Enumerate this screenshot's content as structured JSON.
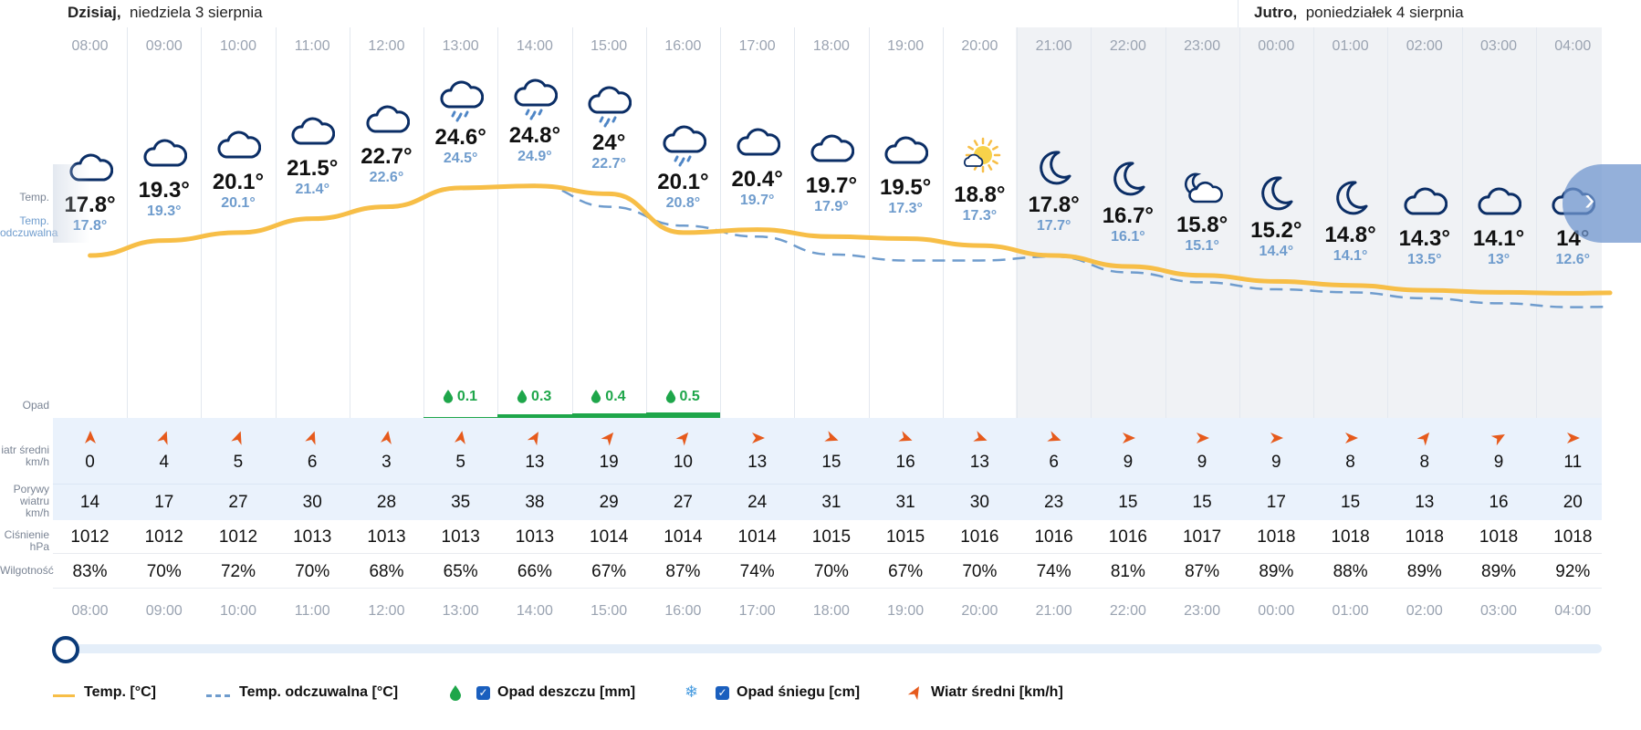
{
  "days": {
    "today": {
      "bold": "Dzisiaj,",
      "rest": "niedziela 3 sierpnia"
    },
    "tomorrow": {
      "bold": "Jutro,",
      "rest": "poniedziałek 4 sierpnia"
    }
  },
  "row_labels": {
    "temp": "Temp.",
    "feel_line1": "Temp.",
    "feel_line2": "odczuwalna",
    "precip": "Opad",
    "wind_line1": "iatr średni",
    "wind_line2": "km/h",
    "gust_line1": "Porywy",
    "gust_line2": "wiatru",
    "gust_line3": "km/h",
    "pressure_line1": "Ciśnienie",
    "pressure_line2": "hPa",
    "humidity": "Wilgotność"
  },
  "hours": [
    {
      "time": "08:00",
      "icon": "cloud-icon",
      "temp": "17.8°",
      "feel": "17.8°",
      "rain": "",
      "wind": "0",
      "wind_dir_deg": 0,
      "gust": "14",
      "pressure": "1012",
      "humidity": "83%",
      "night": false
    },
    {
      "time": "09:00",
      "icon": "cloud-icon",
      "temp": "19.3°",
      "feel": "19.3°",
      "rain": "",
      "wind": "4",
      "wind_dir_deg": 20,
      "gust": "17",
      "pressure": "1012",
      "humidity": "70%",
      "night": false
    },
    {
      "time": "10:00",
      "icon": "cloud-icon",
      "temp": "20.1°",
      "feel": "20.1°",
      "rain": "",
      "wind": "5",
      "wind_dir_deg": 20,
      "gust": "27",
      "pressure": "1012",
      "humidity": "72%",
      "night": false
    },
    {
      "time": "11:00",
      "icon": "cloud-icon",
      "temp": "21.5°",
      "feel": "21.4°",
      "rain": "",
      "wind": "6",
      "wind_dir_deg": 20,
      "gust": "30",
      "pressure": "1013",
      "humidity": "70%",
      "night": false
    },
    {
      "time": "12:00",
      "icon": "cloud-icon",
      "temp": "22.7°",
      "feel": "22.6°",
      "rain": "",
      "wind": "3",
      "wind_dir_deg": 10,
      "gust": "28",
      "pressure": "1013",
      "humidity": "68%",
      "night": false
    },
    {
      "time": "13:00",
      "icon": "rain-cloud-icon",
      "temp": "24.6°",
      "feel": "24.5°",
      "rain": "0.1",
      "wind": "5",
      "wind_dir_deg": 10,
      "gust": "35",
      "pressure": "1013",
      "humidity": "65%",
      "night": false
    },
    {
      "time": "14:00",
      "icon": "rain-cloud-icon",
      "temp": "24.8°",
      "feel": "24.9°",
      "rain": "0.3",
      "wind": "13",
      "wind_dir_deg": 30,
      "gust": "38",
      "pressure": "1013",
      "humidity": "66%",
      "night": false
    },
    {
      "time": "15:00",
      "icon": "rain-cloud-icon",
      "temp": "24°",
      "feel": "22.7°",
      "rain": "0.4",
      "wind": "19",
      "wind_dir_deg": 40,
      "gust": "29",
      "pressure": "1014",
      "humidity": "67%",
      "night": false
    },
    {
      "time": "16:00",
      "icon": "rain-cloud-icon",
      "temp": "20.1°",
      "feel": "20.8°",
      "rain": "0.5",
      "wind": "10",
      "wind_dir_deg": 40,
      "gust": "27",
      "pressure": "1014",
      "humidity": "87%",
      "night": false
    },
    {
      "time": "17:00",
      "icon": "cloud-icon",
      "temp": "20.4°",
      "feel": "19.7°",
      "rain": "",
      "wind": "13",
      "wind_dir_deg": 90,
      "gust": "24",
      "pressure": "1014",
      "humidity": "74%",
      "night": false
    },
    {
      "time": "18:00",
      "icon": "cloud-icon",
      "temp": "19.7°",
      "feel": "17.9°",
      "rain": "",
      "wind": "15",
      "wind_dir_deg": 110,
      "gust": "31",
      "pressure": "1015",
      "humidity": "70%",
      "night": false
    },
    {
      "time": "19:00",
      "icon": "cloud-icon",
      "temp": "19.5°",
      "feel": "17.3°",
      "rain": "",
      "wind": "16",
      "wind_dir_deg": 110,
      "gust": "31",
      "pressure": "1015",
      "humidity": "67%",
      "night": false
    },
    {
      "time": "20:00",
      "icon": "sun-cloud-icon",
      "temp": "18.8°",
      "feel": "17.3°",
      "rain": "",
      "wind": "13",
      "wind_dir_deg": 110,
      "gust": "30",
      "pressure": "1016",
      "humidity": "70%",
      "night": false
    },
    {
      "time": "21:00",
      "icon": "moon-icon",
      "temp": "17.8°",
      "feel": "17.7°",
      "rain": "",
      "wind": "6",
      "wind_dir_deg": 110,
      "gust": "23",
      "pressure": "1016",
      "humidity": "74%",
      "night": true
    },
    {
      "time": "22:00",
      "icon": "moon-icon",
      "temp": "16.7°",
      "feel": "16.1°",
      "rain": "",
      "wind": "9",
      "wind_dir_deg": 90,
      "gust": "15",
      "pressure": "1016",
      "humidity": "81%",
      "night": true
    },
    {
      "time": "23:00",
      "icon": "moon-cloud-icon",
      "temp": "15.8°",
      "feel": "15.1°",
      "rain": "",
      "wind": "9",
      "wind_dir_deg": 90,
      "gust": "15",
      "pressure": "1017",
      "humidity": "87%",
      "night": true
    },
    {
      "time": "00:00",
      "icon": "moon-icon",
      "temp": "15.2°",
      "feel": "14.4°",
      "rain": "",
      "wind": "9",
      "wind_dir_deg": 90,
      "gust": "17",
      "pressure": "1018",
      "humidity": "89%",
      "night": true
    },
    {
      "time": "01:00",
      "icon": "moon-icon",
      "temp": "14.8°",
      "feel": "14.1°",
      "rain": "",
      "wind": "8",
      "wind_dir_deg": 90,
      "gust": "15",
      "pressure": "1018",
      "humidity": "88%",
      "night": true
    },
    {
      "time": "02:00",
      "icon": "cloud-icon",
      "temp": "14.3°",
      "feel": "13.5°",
      "rain": "",
      "wind": "8",
      "wind_dir_deg": 40,
      "gust": "13",
      "pressure": "1018",
      "humidity": "89%",
      "night": true
    },
    {
      "time": "03:00",
      "icon": "cloud-icon",
      "temp": "14.1°",
      "feel": "13°",
      "rain": "",
      "wind": "9",
      "wind_dir_deg": 60,
      "gust": "16",
      "pressure": "1018",
      "humidity": "89%",
      "night": true
    },
    {
      "time": "04:00",
      "icon": "cloud-icon",
      "temp": "14°",
      "feel": "12.6°",
      "rain": "",
      "wind": "11",
      "wind_dir_deg": 90,
      "gust": "20",
      "pressure": "1018",
      "humidity": "92%",
      "night": true
    }
  ],
  "chart_data": {
    "type": "line",
    "x": [
      "08:00",
      "09:00",
      "10:00",
      "11:00",
      "12:00",
      "13:00",
      "14:00",
      "15:00",
      "16:00",
      "17:00",
      "18:00",
      "19:00",
      "20:00",
      "21:00",
      "22:00",
      "23:00",
      "00:00",
      "01:00",
      "02:00",
      "03:00",
      "04:00"
    ],
    "series": [
      {
        "name": "Temp. [°C]",
        "values": [
          17.8,
          19.3,
          20.1,
          21.5,
          22.7,
          24.6,
          24.8,
          24,
          20.1,
          20.4,
          19.7,
          19.5,
          18.8,
          17.8,
          16.7,
          15.8,
          15.2,
          14.8,
          14.3,
          14.1,
          14
        ]
      },
      {
        "name": "Temp. odczuwalna [°C]",
        "values": [
          17.8,
          19.3,
          20.1,
          21.4,
          22.6,
          24.5,
          24.9,
          22.7,
          20.8,
          19.7,
          17.9,
          17.3,
          17.3,
          17.7,
          16.1,
          15.1,
          14.4,
          14.1,
          13.5,
          13,
          12.6
        ]
      }
    ],
    "precipitation_mm": [
      0,
      0,
      0,
      0,
      0,
      0.1,
      0.3,
      0.4,
      0.5,
      0,
      0,
      0,
      0,
      0,
      0,
      0,
      0,
      0,
      0,
      0,
      0
    ],
    "colors": {
      "temp": "#f7be47",
      "feel": "#6f9ccd",
      "rain": "#1ea64a",
      "wind": "#e65a1c",
      "night_bg": "#f0f2f5"
    }
  },
  "legend": {
    "temp": "Temp. [°C]",
    "feel": "Temp. odczuwalna [°C]",
    "rain": "Opad deszczu [mm]",
    "snow": "Opad śniegu [cm]",
    "wind": "Wiatr średni [km/h]",
    "check": "✓"
  },
  "nav": {
    "next": "›"
  }
}
